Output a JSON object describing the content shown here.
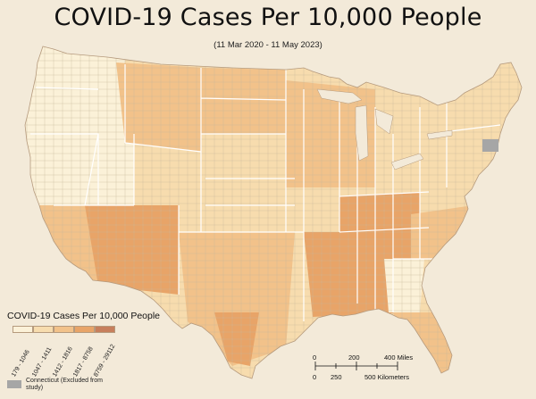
{
  "title": "COVID-19 Cases Per 10,000 People",
  "subtitle": "(11 Mar 2020 - 11 May 2023)",
  "legend": {
    "title": "COVID-19 Cases Per 10,000 People",
    "classes": [
      {
        "label": "179 - 1046",
        "color": "#fbf1d8"
      },
      {
        "label": "1047 - 1411",
        "color": "#f7dcae"
      },
      {
        "label": "1412 - 1816",
        "color": "#f2c28a"
      },
      {
        "label": "1817 - 8758",
        "color": "#e8a468"
      },
      {
        "label": "8759 - 29112",
        "color": "#c77f5c"
      }
    ],
    "excluded_label": "Connecticut (Excluded from study)",
    "excluded_color": "#a6a6a6"
  },
  "scale_bar": {
    "miles_labels": [
      "0",
      "200",
      "400 Miles"
    ],
    "km_labels": [
      "0",
      "250",
      "500 Kilometers"
    ]
  },
  "colors": {
    "background": "#f3ead9",
    "state_border": "#ffffff",
    "county_border": "#c9b79b"
  }
}
